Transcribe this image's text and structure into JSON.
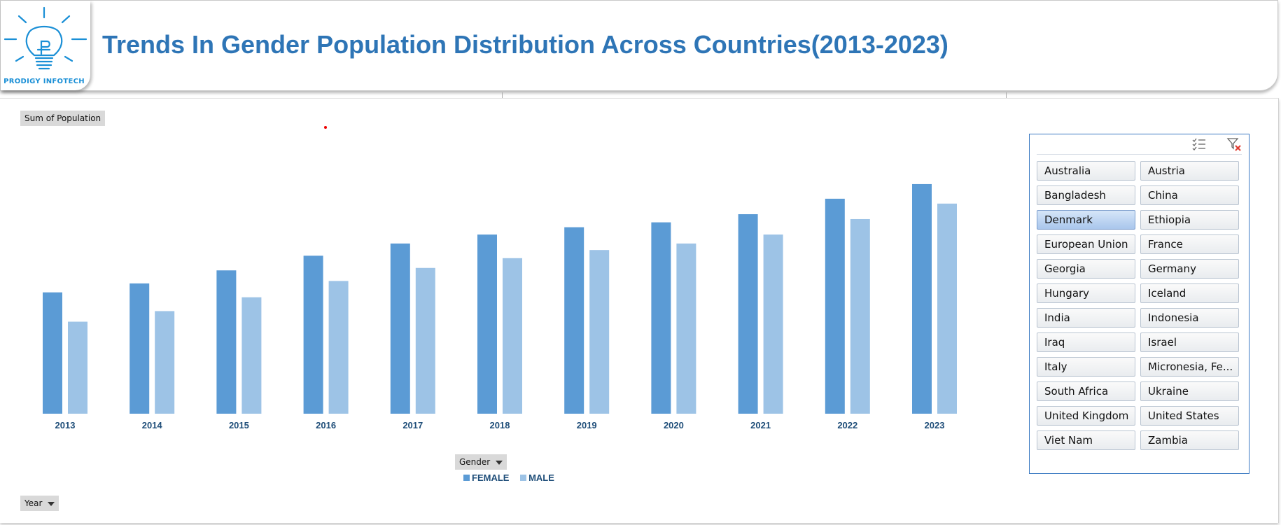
{
  "header": {
    "title": "Trends In Gender Population Distribution Across Countries(2013-2023)",
    "logo_text": "PRODIGY INFOTECH",
    "logo_icon": "lightbulb-icon"
  },
  "pivot": {
    "values_field": "Sum of Population",
    "legend_field": "Gender",
    "axis_field": "Year"
  },
  "colors": {
    "female": "#5b9bd5",
    "male": "#9dc3e6",
    "title": "#2e75b6",
    "slicer_border": "#3a79c2"
  },
  "chart_data": {
    "type": "bar",
    "categories": [
      "2013",
      "2014",
      "2015",
      "2016",
      "2017",
      "2018",
      "2019",
      "2020",
      "2021",
      "2022",
      "2023"
    ],
    "series": [
      {
        "name": "FEMALE",
        "values": [
          149,
          160,
          176,
          194,
          209,
          220,
          229,
          235,
          245,
          264,
          282
        ]
      },
      {
        "name": "MALE",
        "values": [
          113,
          126,
          143,
          163,
          179,
          191,
          201,
          209,
          220,
          239,
          258
        ]
      }
    ],
    "title": "",
    "xlabel": "",
    "ylabel": "",
    "ylim": [
      0,
      300
    ],
    "grid": false,
    "legend": "bottom"
  },
  "slicer": {
    "multi_select_icon": "multi-select-icon",
    "clear_filter_icon": "clear-filter-icon",
    "items": [
      {
        "label": "Australia",
        "selected": false
      },
      {
        "label": "Austria",
        "selected": false
      },
      {
        "label": "Bangladesh",
        "selected": false
      },
      {
        "label": "China",
        "selected": false
      },
      {
        "label": "Denmark",
        "selected": true
      },
      {
        "label": "Ethiopia",
        "selected": false
      },
      {
        "label": "European Union",
        "selected": false
      },
      {
        "label": "France",
        "selected": false
      },
      {
        "label": "Georgia",
        "selected": false
      },
      {
        "label": "Germany",
        "selected": false
      },
      {
        "label": "Hungary",
        "selected": false
      },
      {
        "label": "Iceland",
        "selected": false
      },
      {
        "label": "India",
        "selected": false
      },
      {
        "label": "Indonesia",
        "selected": false
      },
      {
        "label": "Iraq",
        "selected": false
      },
      {
        "label": "Israel",
        "selected": false
      },
      {
        "label": "Italy",
        "selected": false
      },
      {
        "label": "Micronesia, Fe...",
        "selected": false
      },
      {
        "label": "South Africa",
        "selected": false
      },
      {
        "label": "Ukraine",
        "selected": false
      },
      {
        "label": "United Kingdom",
        "selected": false
      },
      {
        "label": "United States",
        "selected": false
      },
      {
        "label": "Viet Nam",
        "selected": false
      },
      {
        "label": "Zambia",
        "selected": false
      }
    ]
  }
}
